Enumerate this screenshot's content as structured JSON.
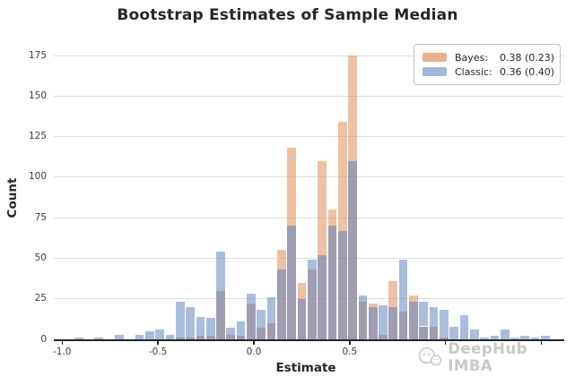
{
  "title": "Bootstrap Estimates of Sample Median",
  "axes": {
    "x_label": "Estimate",
    "y_label": "Count",
    "x_tick_labels": [
      {
        "text": "-1.0",
        "unit": -1.0
      },
      {
        "text": "-0.5",
        "unit": -0.5
      },
      {
        "text": "0.0",
        "unit": 0.0
      },
      {
        "text": "0.5",
        "unit": 0.5
      }
    ],
    "x_tick_mark_units": [
      -1.0,
      -0.5,
      0.0,
      0.5,
      1.0,
      1.5
    ],
    "y_tick_labels": [
      {
        "text": "0",
        "value": 0
      },
      {
        "text": "25",
        "value": 25
      },
      {
        "text": "50",
        "value": 50
      },
      {
        "text": "75",
        "value": 75
      },
      {
        "text": "100",
        "value": 100
      },
      {
        "text": "125",
        "value": 125
      },
      {
        "text": "150",
        "value": 150
      },
      {
        "text": "175",
        "value": 175
      }
    ]
  },
  "legend": {
    "entries": [
      {
        "name": "Bayes:",
        "value": "0.38 (0.23)",
        "swatch_color": "#ecb08c"
      },
      {
        "name": "Classic:",
        "value": "0.36 (0.40)",
        "swatch_color": "#a2b7da"
      }
    ]
  },
  "watermark": {
    "text": "DeepHub IMBA"
  },
  "colors": {
    "bayes_fill": "rgba(227,152,102,0.6)",
    "classic_fill": "rgba(112,147,198,0.6)",
    "overlap_fill": "rgba(140,138,162,0.84)",
    "grid": "#dcdcdc",
    "axis_line": "#262626",
    "text": "#262626",
    "tick_text": "#3d3d3d",
    "watermark_text": "#c8c8c8"
  },
  "chart_data": {
    "type": "bar",
    "subtype": "overlaid-histogram",
    "title": "Bootstrap Estimates of Sample Median",
    "xlabel": "Estimate",
    "ylabel": "Count",
    "xlim": [
      -1.04,
      1.62
    ],
    "ylim": [
      0,
      183
    ],
    "grid": "horizontal",
    "legend_position": "upper right",
    "bin_start": -0.94,
    "bin_width": 0.0529,
    "series": [
      {
        "name": "Bayes",
        "legend_stats": "0.38 (0.23)",
        "values": [
          0,
          0,
          0,
          0,
          0,
          0,
          0,
          0,
          0,
          0,
          1,
          1,
          2,
          2,
          30,
          3,
          2,
          22,
          7,
          10,
          55,
          118,
          35,
          43,
          110,
          80,
          134,
          175,
          23,
          22,
          3,
          36,
          17,
          27,
          8,
          8,
          1,
          0,
          0,
          0,
          0,
          0,
          0,
          0,
          0,
          0,
          0
        ]
      },
      {
        "name": "Classic",
        "legend_stats": "0.36 (0.40)",
        "values": [
          1,
          0,
          1,
          0,
          3,
          0,
          3,
          5,
          6,
          3,
          23,
          20,
          14,
          13,
          54,
          7,
          11,
          28,
          18,
          26,
          43,
          70,
          25,
          49,
          52,
          70,
          67,
          110,
          27,
          20,
          21,
          20,
          49,
          23,
          23,
          20,
          18,
          8,
          15,
          6,
          1,
          2,
          6,
          1,
          2,
          1,
          2
        ]
      }
    ]
  }
}
